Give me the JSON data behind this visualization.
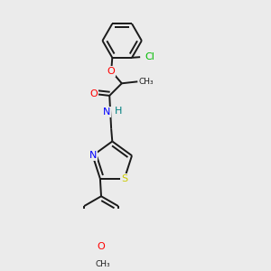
{
  "bg_color": "#ebebeb",
  "bond_color": "#1a1a1a",
  "bond_lw": 1.4,
  "atom_colors": {
    "O": "#ff0000",
    "N": "#0000ff",
    "H": "#008080",
    "S": "#cccc00",
    "Cl": "#00bb00",
    "C": "#1a1a1a"
  },
  "font_size": 8.0
}
